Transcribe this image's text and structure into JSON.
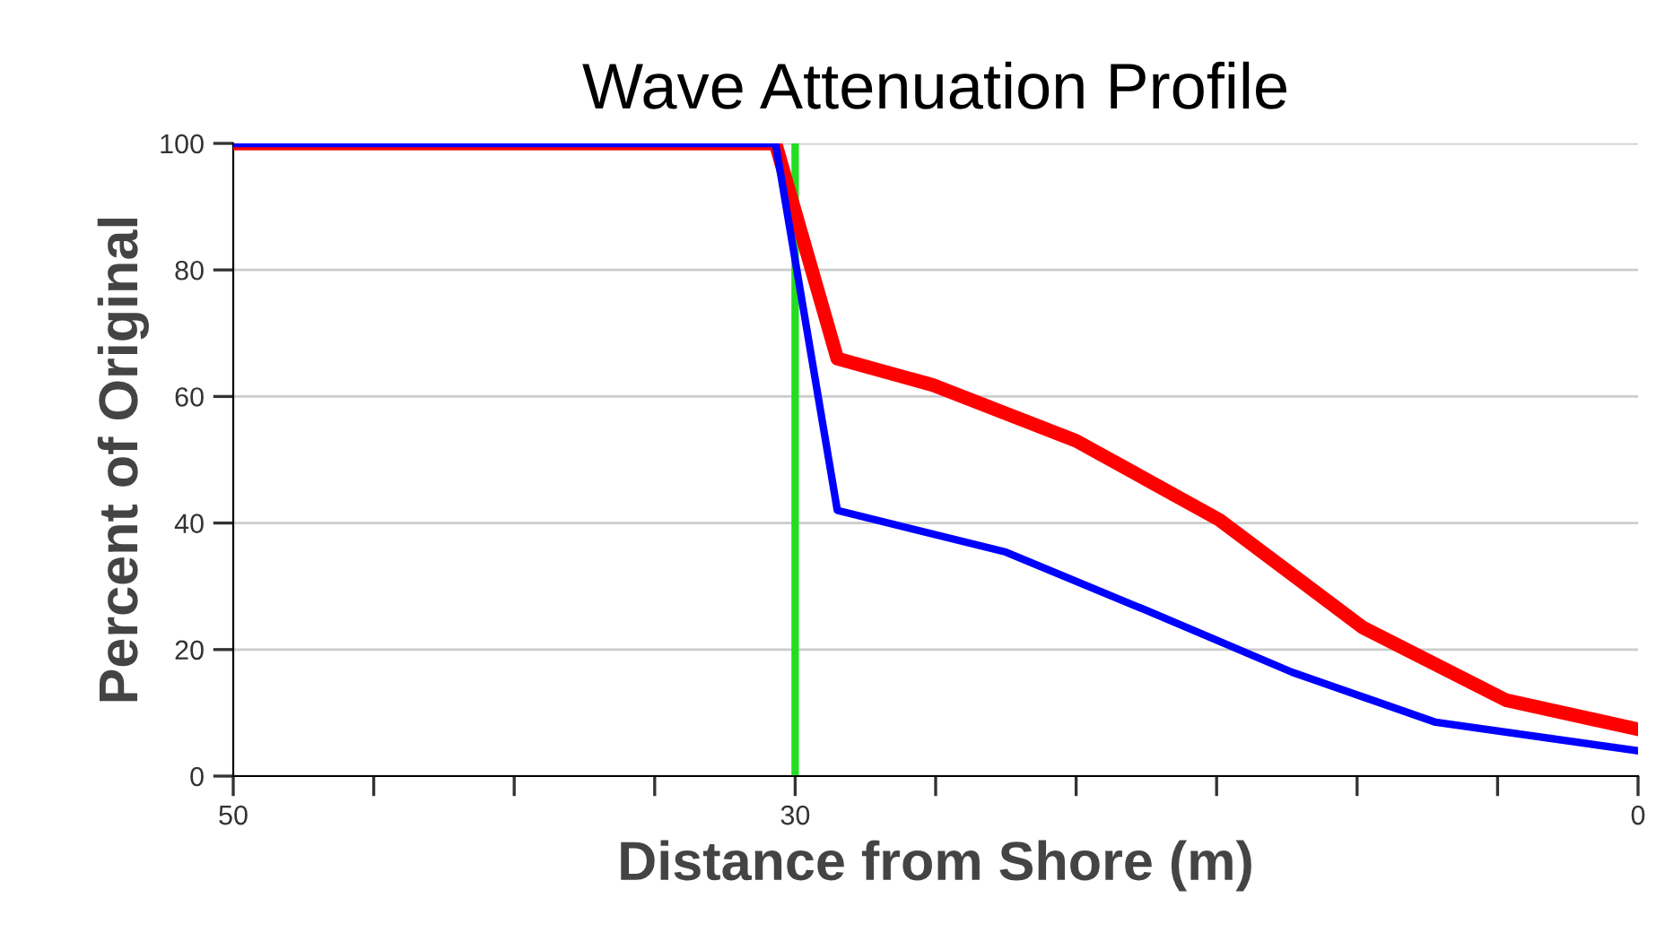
{
  "chart_data": {
    "type": "line",
    "title": "Wave Attenuation Profile",
    "xlabel": "Distance from Shore (m)",
    "ylabel": "Percent of Original",
    "xlim": [
      50,
      0
    ],
    "xticks": [
      50,
      {
        "value": 45,
        "label": null
      },
      {
        "value": 40,
        "label": null
      },
      {
        "value": 35,
        "label": null
      },
      30,
      {
        "value": 25,
        "label": null
      },
      {
        "value": 20,
        "label": null
      },
      {
        "value": 15,
        "label": null
      },
      {
        "value": 10,
        "label": null
      },
      {
        "value": 5,
        "label": null
      },
      0
    ],
    "ylim": [
      0,
      100
    ],
    "yticks": [
      0,
      20,
      40,
      60,
      80,
      100
    ],
    "grid": "y",
    "marker": "none",
    "line_style": "solid",
    "ref_lines": [
      {
        "axis": "x",
        "value": 30,
        "color": "#22dd22"
      }
    ],
    "series": [
      {
        "color": "#ff0000",
        "x": [
          50,
          30.7,
          28.5,
          25.1,
          20,
          14.9,
          9.8,
          4.7,
          0
        ],
        "values": [
          100,
          100,
          66,
          61.8,
          53,
          40.5,
          23.5,
          12,
          7.4
        ]
      },
      {
        "color": "#0000ff",
        "x": [
          50,
          30.7,
          28.5,
          22.5,
          17.4,
          12.3,
          7.2,
          0
        ],
        "values": [
          100,
          100,
          42,
          35.4,
          26,
          16.4,
          8.5,
          4
        ]
      }
    ]
  }
}
